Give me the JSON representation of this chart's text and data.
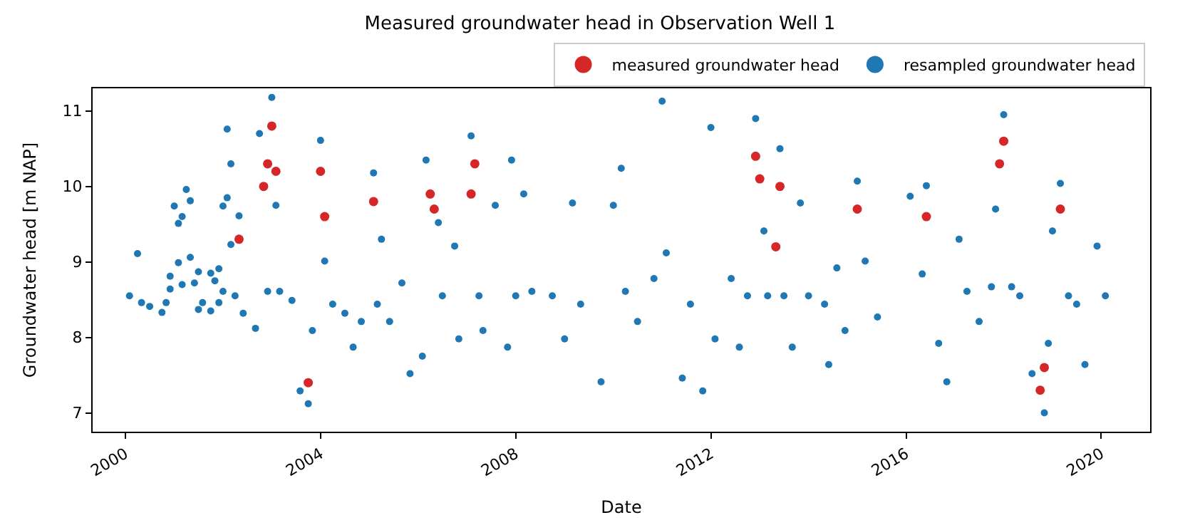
{
  "chart_data": {
    "type": "scatter",
    "title": "Measured groundwater head in Observation Well 1",
    "xlabel": "Date",
    "ylabel": "Groundwater head [m NAP]",
    "xlim": [
      "1999-05",
      "2021-01"
    ],
    "xticks": [
      "2000",
      "2004",
      "2008",
      "2012",
      "2016",
      "2020"
    ],
    "ylim": [
      6.75,
      11.3
    ],
    "yticks": [
      7,
      8,
      9,
      10,
      11
    ],
    "legend": "top right",
    "marker": "circle",
    "series": [
      {
        "name": "measured groundwater head",
        "color": "#d62728",
        "x": [
          "2002-05",
          "2002-11",
          "2002-12",
          "2003-01",
          "2003-02",
          "2003-10",
          "2004-01",
          "2004-02",
          "2005-02",
          "2006-04",
          "2006-05",
          "2007-02",
          "2007-03",
          "2012-12",
          "2013-01",
          "2013-05",
          "2013-06",
          "2015-01",
          "2016-06",
          "2017-12",
          "2018-01",
          "2018-10",
          "2018-11",
          "2019-03"
        ],
        "values": [
          9.3,
          10.0,
          10.3,
          10.8,
          10.2,
          7.4,
          10.2,
          9.6,
          9.8,
          9.9,
          9.7,
          9.9,
          10.3,
          10.4,
          10.1,
          9.2,
          10.0,
          9.7,
          9.6,
          10.3,
          10.6,
          7.3,
          7.6,
          9.7
        ]
      },
      {
        "name": "resampled groundwater head",
        "color": "#1f77b4",
        "x": [
          "2000-02",
          "2000-04",
          "2000-05",
          "2000-07",
          "2000-10",
          "2000-11",
          "2000-12",
          "2000-12",
          "2001-01",
          "2001-02",
          "2001-02",
          "2001-03",
          "2001-03",
          "2001-04",
          "2001-05",
          "2001-05",
          "2001-06",
          "2001-07",
          "2001-07",
          "2001-08",
          "2001-10",
          "2001-10",
          "2001-11",
          "2001-12",
          "2001-12",
          "2002-01",
          "2002-01",
          "2002-02",
          "2002-02",
          "2002-03",
          "2002-03",
          "2002-04",
          "2002-05",
          "2002-06",
          "2002-09",
          "2002-10",
          "2002-12",
          "2003-01",
          "2003-02",
          "2003-03",
          "2003-06",
          "2003-08",
          "2003-10",
          "2003-11",
          "2004-01",
          "2004-02",
          "2004-04",
          "2004-07",
          "2004-09",
          "2004-11",
          "2005-02",
          "2005-03",
          "2005-04",
          "2005-06",
          "2005-09",
          "2005-11",
          "2006-02",
          "2006-03",
          "2006-06",
          "2006-07",
          "2006-10",
          "2006-11",
          "2007-02",
          "2007-04",
          "2007-05",
          "2007-08",
          "2007-11",
          "2007-12",
          "2008-01",
          "2008-03",
          "2008-05",
          "2008-10",
          "2009-01",
          "2009-03",
          "2009-05",
          "2009-10",
          "2010-01",
          "2010-03",
          "2010-04",
          "2010-07",
          "2010-11",
          "2011-01",
          "2011-02",
          "2011-06",
          "2011-08",
          "2011-11",
          "2012-01",
          "2012-02",
          "2012-06",
          "2012-08",
          "2012-10",
          "2012-12",
          "2013-02",
          "2013-03",
          "2013-06",
          "2013-07",
          "2013-09",
          "2013-11",
          "2014-01",
          "2014-05",
          "2014-06",
          "2014-08",
          "2014-10",
          "2015-01",
          "2015-03",
          "2015-06",
          "2016-02",
          "2016-05",
          "2016-06",
          "2016-09",
          "2016-11",
          "2017-02",
          "2017-04",
          "2017-07",
          "2017-10",
          "2017-11",
          "2018-01",
          "2018-03",
          "2018-05",
          "2018-08",
          "2018-11",
          "2018-12",
          "2019-01",
          "2019-03",
          "2019-05",
          "2019-07",
          "2019-09",
          "2019-12",
          "2020-02"
        ],
        "values": [
          8.55,
          9.11,
          8.46,
          8.41,
          8.33,
          8.46,
          8.81,
          8.64,
          9.74,
          8.99,
          9.51,
          8.7,
          9.6,
          9.96,
          9.81,
          9.06,
          8.72,
          8.87,
          8.37,
          8.46,
          8.85,
          8.35,
          8.75,
          8.91,
          8.46,
          8.61,
          9.74,
          9.85,
          10.76,
          9.23,
          10.3,
          8.55,
          9.61,
          8.32,
          8.12,
          10.7,
          8.61,
          11.18,
          9.75,
          8.61,
          8.49,
          7.29,
          7.12,
          8.09,
          10.61,
          9.01,
          8.44,
          8.32,
          7.87,
          8.21,
          10.18,
          8.44,
          9.3,
          8.21,
          8.72,
          7.52,
          7.75,
          10.35,
          9.52,
          8.55,
          9.21,
          7.98,
          10.67,
          8.55,
          8.09,
          9.75,
          7.87,
          10.35,
          8.55,
          9.9,
          8.61,
          8.55,
          7.98,
          9.78,
          8.44,
          7.41,
          9.75,
          10.24,
          8.61,
          8.21,
          8.78,
          11.13,
          9.12,
          7.46,
          8.44,
          7.29,
          10.78,
          7.98,
          8.78,
          7.87,
          8.55,
          10.9,
          9.41,
          8.55,
          10.5,
          8.55,
          7.87,
          9.78,
          8.55,
          8.44,
          7.64,
          8.92,
          8.09,
          10.07,
          9.01,
          8.27,
          9.87,
          8.84,
          10.01,
          7.92,
          7.41,
          9.3,
          8.61,
          8.21,
          8.67,
          9.7,
          10.95,
          8.67,
          8.55,
          7.52,
          7.0,
          7.92,
          9.41,
          10.04,
          8.55,
          8.44,
          7.64,
          9.21,
          8.55
        ]
      }
    ]
  }
}
